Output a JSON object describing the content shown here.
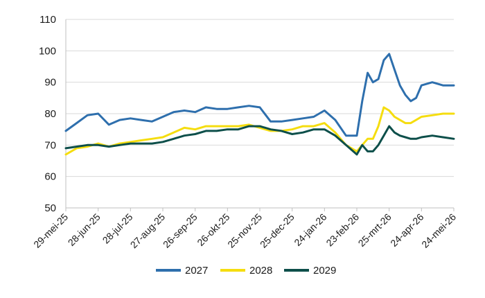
{
  "chart_data": {
    "type": "line",
    "title": "",
    "xlabel": "",
    "ylabel": "",
    "ylim": [
      50,
      110
    ],
    "yticks": [
      50,
      60,
      70,
      80,
      90,
      100,
      110
    ],
    "grid": "horizontal",
    "legend_position": "bottom",
    "x_tick_labels": [
      "29-mei-25",
      "28-jun-25",
      "28-jul-25",
      "27-aug-25",
      "26-sep-25",
      "26-okt-25",
      "25-nov-25",
      "25-dec-25",
      "24-jan-26",
      "23-feb-26",
      "25-mrt-26",
      "24-apr-26",
      "24-mei-26"
    ],
    "series": [
      {
        "name": "2027",
        "color": "#2e6fad",
        "x": [
          "29-mei-25",
          "8-jun-25",
          "18-jun-25",
          "28-jun-25",
          "8-jul-25",
          "18-jul-25",
          "28-jul-25",
          "7-aug-25",
          "17-aug-25",
          "27-aug-25",
          "6-sep-25",
          "16-sep-25",
          "26-sep-25",
          "6-okt-25",
          "16-okt-25",
          "26-okt-25",
          "5-nov-25",
          "15-nov-25",
          "25-nov-25",
          "5-dec-25",
          "15-dec-25",
          "25-dec-25",
          "4-jan-26",
          "14-jan-26",
          "24-jan-26",
          "3-feb-26",
          "13-feb-26",
          "23-feb-26",
          "28-feb-26",
          "5-mrt-26",
          "10-mrt-26",
          "15-mrt-26",
          "20-mrt-26",
          "25-mrt-26",
          "30-mrt-26",
          "4-apr-26",
          "9-apr-26",
          "14-apr-26",
          "19-apr-26",
          "24-apr-26",
          "4-mei-26",
          "14-mei-26",
          "24-mei-26"
        ],
        "values": [
          74.5,
          77,
          79.5,
          80,
          76.5,
          78,
          78.5,
          78,
          77.5,
          79,
          80.5,
          81,
          80.5,
          82,
          81.5,
          81.5,
          82,
          82.5,
          82,
          77.5,
          77.5,
          78,
          78.5,
          79,
          81,
          78,
          73,
          73,
          84,
          93,
          90,
          91,
          97,
          99,
          94,
          89,
          86,
          84,
          85,
          89,
          90,
          89,
          89
        ]
      },
      {
        "name": "2028",
        "color": "#f5dd0f",
        "x": [
          "29-mei-25",
          "8-jun-25",
          "18-jun-25",
          "28-jun-25",
          "8-jul-25",
          "18-jul-25",
          "28-jul-25",
          "7-aug-25",
          "17-aug-25",
          "27-aug-25",
          "6-sep-25",
          "16-sep-25",
          "26-sep-25",
          "6-okt-25",
          "16-okt-25",
          "26-okt-25",
          "5-nov-25",
          "15-nov-25",
          "25-nov-25",
          "5-dec-25",
          "15-dec-25",
          "25-dec-25",
          "4-jan-26",
          "14-jan-26",
          "24-jan-26",
          "3-feb-26",
          "13-feb-26",
          "23-feb-26",
          "28-feb-26",
          "5-mrt-26",
          "10-mrt-26",
          "15-mrt-26",
          "20-mrt-26",
          "25-mrt-26",
          "30-mrt-26",
          "4-apr-26",
          "9-apr-26",
          "14-apr-26",
          "19-apr-26",
          "24-apr-26",
          "4-mei-26",
          "14-mei-26",
          "24-mei-26"
        ],
        "values": [
          67,
          69,
          69.5,
          70.5,
          69.5,
          70.5,
          71,
          71.5,
          72,
          72.5,
          74,
          75.5,
          75,
          76,
          76,
          76,
          76,
          76.5,
          75.5,
          74.5,
          74.5,
          75,
          76,
          76,
          77,
          74,
          70,
          68,
          70,
          72,
          72,
          76,
          82,
          81,
          79,
          78,
          77,
          77,
          78,
          79,
          79.5,
          80,
          80
        ]
      },
      {
        "name": "2029",
        "color": "#0d4f4a",
        "x": [
          "29-mei-25",
          "8-jun-25",
          "18-jun-25",
          "28-jun-25",
          "8-jul-25",
          "18-jul-25",
          "28-jul-25",
          "7-aug-25",
          "17-aug-25",
          "27-aug-25",
          "6-sep-25",
          "16-sep-25",
          "26-sep-25",
          "6-okt-25",
          "16-okt-25",
          "26-okt-25",
          "5-nov-25",
          "15-nov-25",
          "25-nov-25",
          "5-dec-25",
          "15-dec-25",
          "25-dec-25",
          "4-jan-26",
          "14-jan-26",
          "24-jan-26",
          "3-feb-26",
          "13-feb-26",
          "23-feb-26",
          "28-feb-26",
          "5-mrt-26",
          "10-mrt-26",
          "15-mrt-26",
          "20-mrt-26",
          "25-mrt-26",
          "30-mrt-26",
          "4-apr-26",
          "9-apr-26",
          "14-apr-26",
          "19-apr-26",
          "24-apr-26",
          "4-mei-26",
          "14-mei-26",
          "24-mei-26"
        ],
        "values": [
          69,
          69.5,
          70,
          70,
          69.5,
          70,
          70.5,
          70.5,
          70.5,
          71,
          72,
          73,
          73.5,
          74.5,
          74.5,
          75,
          75,
          76,
          76,
          75,
          74.5,
          73.5,
          74,
          75,
          75,
          73,
          70,
          67,
          70,
          68,
          68,
          70,
          73,
          76,
          74,
          73,
          72.5,
          72,
          72,
          72.5,
          73,
          72.5,
          72
        ]
      }
    ]
  }
}
